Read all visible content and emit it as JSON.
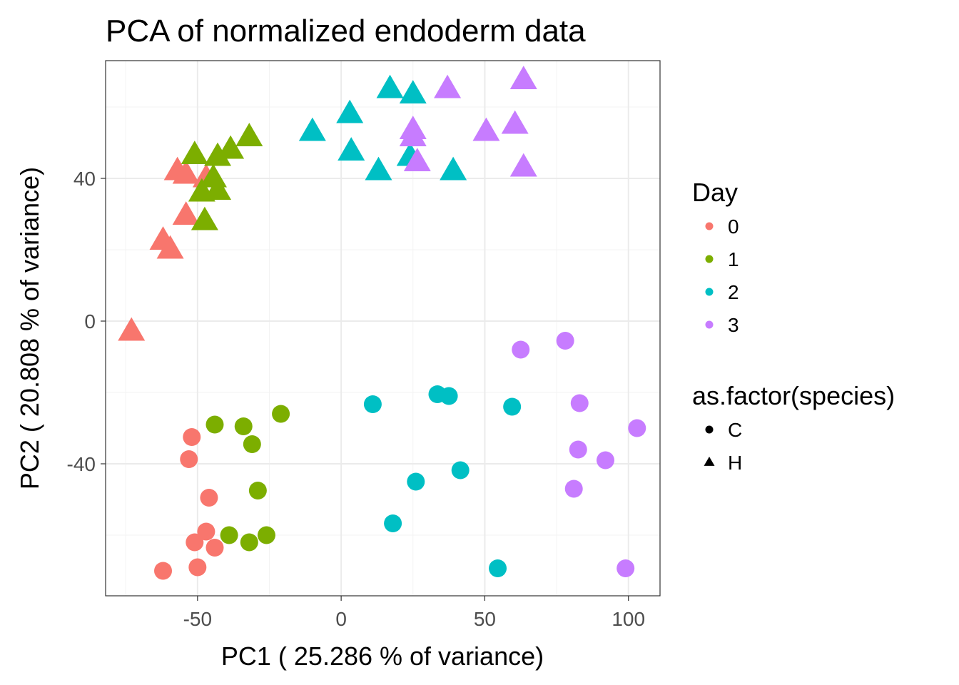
{
  "chart_data": {
    "type": "scatter",
    "title": "PCA of normalized endoderm data",
    "xlabel": "PC1 ( 25.286 % of variance)",
    "ylabel": "PC2 ( 20.808 % of variance)",
    "xlim": [
      -82,
      111
    ],
    "ylim": [
      -77,
      73
    ],
    "x_ticks": [
      -50,
      0,
      50,
      100
    ],
    "x_tick_labels": [
      "-50",
      "0",
      "50",
      "100"
    ],
    "y_ticks": [
      -40,
      0,
      40
    ],
    "y_tick_labels": [
      "-40",
      "0",
      "40"
    ],
    "x_minor": [
      -75,
      -25,
      25,
      75
    ],
    "y_minor": [
      -60,
      -20,
      20,
      60
    ],
    "grid": true,
    "legend_position": "right",
    "legends": [
      {
        "key": "day",
        "title": "Day",
        "entries": [
          {
            "label": "0",
            "color": "#F8766D"
          },
          {
            "label": "1",
            "color": "#7CAE00"
          },
          {
            "label": "2",
            "color": "#00BFC4"
          },
          {
            "label": "3",
            "color": "#C77CFF"
          }
        ]
      },
      {
        "key": "species",
        "title": "as.factor(species)",
        "entries": [
          {
            "label": "C",
            "shape": "circle"
          },
          {
            "label": "H",
            "shape": "triangle"
          }
        ]
      }
    ],
    "points": [
      {
        "x": -52,
        "y": -32.5,
        "day": "0",
        "species": "C"
      },
      {
        "x": -53,
        "y": -38.7,
        "day": "0",
        "species": "C"
      },
      {
        "x": -46,
        "y": -49.5,
        "day": "0",
        "species": "C"
      },
      {
        "x": -47,
        "y": -59,
        "day": "0",
        "species": "C"
      },
      {
        "x": -51,
        "y": -62,
        "day": "0",
        "species": "C"
      },
      {
        "x": -44,
        "y": -63.5,
        "day": "0",
        "species": "C"
      },
      {
        "x": -62,
        "y": -70,
        "day": "0",
        "species": "C"
      },
      {
        "x": -50,
        "y": -69,
        "day": "0",
        "species": "C"
      },
      {
        "x": -44,
        "y": -29,
        "day": "1",
        "species": "C"
      },
      {
        "x": -34,
        "y": -29.5,
        "day": "1",
        "species": "C"
      },
      {
        "x": -21,
        "y": -26,
        "day": "1",
        "species": "C"
      },
      {
        "x": -31,
        "y": -34.5,
        "day": "1",
        "species": "C"
      },
      {
        "x": -29,
        "y": -47.5,
        "day": "1",
        "species": "C"
      },
      {
        "x": -39,
        "y": -60,
        "day": "1",
        "species": "C"
      },
      {
        "x": -32,
        "y": -62,
        "day": "1",
        "species": "C"
      },
      {
        "x": -26,
        "y": -60,
        "day": "1",
        "species": "C"
      },
      {
        "x": 11,
        "y": -23.3,
        "day": "2",
        "species": "C"
      },
      {
        "x": 33.5,
        "y": -20.5,
        "day": "2",
        "species": "C"
      },
      {
        "x": 37.5,
        "y": -21,
        "day": "2",
        "species": "C"
      },
      {
        "x": 59.5,
        "y": -24,
        "day": "2",
        "species": "C"
      },
      {
        "x": 41.5,
        "y": -41.8,
        "day": "2",
        "species": "C"
      },
      {
        "x": 26,
        "y": -45,
        "day": "2",
        "species": "C"
      },
      {
        "x": 18,
        "y": -56.7,
        "day": "2",
        "species": "C"
      },
      {
        "x": 54.5,
        "y": -69.3,
        "day": "2",
        "species": "C"
      },
      {
        "x": 62.5,
        "y": -8,
        "day": "3",
        "species": "C"
      },
      {
        "x": 78,
        "y": -5.5,
        "day": "3",
        "species": "C"
      },
      {
        "x": 83,
        "y": -23,
        "day": "3",
        "species": "C"
      },
      {
        "x": 103,
        "y": -30,
        "day": "3",
        "species": "C"
      },
      {
        "x": 82.5,
        "y": -36,
        "day": "3",
        "species": "C"
      },
      {
        "x": 92,
        "y": -39,
        "day": "3",
        "species": "C"
      },
      {
        "x": 81,
        "y": -47,
        "day": "3",
        "species": "C"
      },
      {
        "x": 99,
        "y": -69.3,
        "day": "3",
        "species": "C"
      },
      {
        "x": -57,
        "y": 42,
        "day": "0",
        "species": "H"
      },
      {
        "x": -54,
        "y": 41,
        "day": "0",
        "species": "H"
      },
      {
        "x": -47,
        "y": 40,
        "day": "0",
        "species": "H"
      },
      {
        "x": -54,
        "y": 29.5,
        "day": "0",
        "species": "H"
      },
      {
        "x": -62,
        "y": 22.5,
        "day": "0",
        "species": "H"
      },
      {
        "x": -59.5,
        "y": 20,
        "day": "0",
        "species": "H"
      },
      {
        "x": -73,
        "y": -3,
        "day": "0",
        "species": "H"
      },
      {
        "x": -51,
        "y": 46.5,
        "day": "1",
        "species": "H"
      },
      {
        "x": -43,
        "y": 46,
        "day": "1",
        "species": "H"
      },
      {
        "x": -38.5,
        "y": 48,
        "day": "1",
        "species": "H"
      },
      {
        "x": -32,
        "y": 51.5,
        "day": "1",
        "species": "H"
      },
      {
        "x": -44.5,
        "y": 40,
        "day": "1",
        "species": "H"
      },
      {
        "x": -48.5,
        "y": 36,
        "day": "1",
        "species": "H"
      },
      {
        "x": -43,
        "y": 36.5,
        "day": "1",
        "species": "H"
      },
      {
        "x": -47.5,
        "y": 28,
        "day": "1",
        "species": "H"
      },
      {
        "x": 17,
        "y": 65,
        "day": "2",
        "species": "H"
      },
      {
        "x": 25,
        "y": 63.5,
        "day": "2",
        "species": "H"
      },
      {
        "x": 3,
        "y": 58,
        "day": "2",
        "species": "H"
      },
      {
        "x": -10,
        "y": 53,
        "day": "2",
        "species": "H"
      },
      {
        "x": 3.5,
        "y": 47.5,
        "day": "2",
        "species": "H"
      },
      {
        "x": 24,
        "y": 46,
        "day": "2",
        "species": "H"
      },
      {
        "x": 13,
        "y": 42,
        "day": "2",
        "species": "H"
      },
      {
        "x": 39,
        "y": 42,
        "day": "2",
        "species": "H"
      },
      {
        "x": 37,
        "y": 65,
        "day": "3",
        "species": "H"
      },
      {
        "x": 63.5,
        "y": 67.5,
        "day": "3",
        "species": "H"
      },
      {
        "x": 25,
        "y": 53.5,
        "day": "3",
        "species": "H"
      },
      {
        "x": 25,
        "y": 51.5,
        "day": "3",
        "species": "H"
      },
      {
        "x": 50.5,
        "y": 53,
        "day": "3",
        "species": "H"
      },
      {
        "x": 60.5,
        "y": 55,
        "day": "3",
        "species": "H"
      },
      {
        "x": 26.5,
        "y": 44.5,
        "day": "3",
        "species": "H"
      },
      {
        "x": 63.5,
        "y": 43,
        "day": "3",
        "species": "H"
      }
    ]
  }
}
